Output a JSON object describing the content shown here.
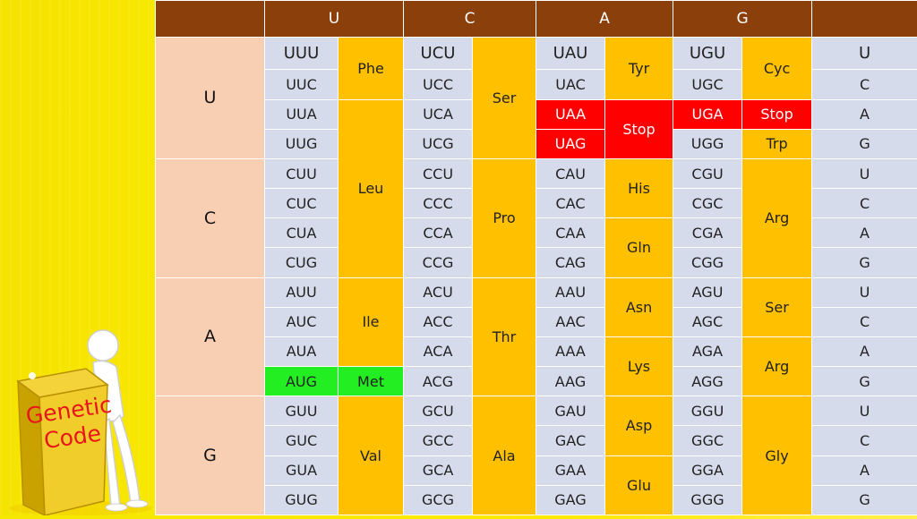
{
  "header": {
    "corner_left": "",
    "u": "U",
    "c": "C",
    "a": "A",
    "g": "G",
    "corner_right": ""
  },
  "first_bases": [
    "U",
    "C",
    "A",
    "G"
  ],
  "third_bases": [
    "U",
    "C",
    "A",
    "G"
  ],
  "codons": {
    "U": {
      "U": [
        "UUU",
        "UUC",
        "UUA",
        "UUG"
      ],
      "C": [
        "UCU",
        "UCC",
        "UCA",
        "UCG"
      ],
      "A": [
        "UAU",
        "UAC",
        "UAA",
        "UAG"
      ],
      "G": [
        "UGU",
        "UGC",
        "UGA",
        "UGG"
      ]
    },
    "C": {
      "U": [
        "CUU",
        "CUC",
        "CUA",
        "CUG"
      ],
      "C": [
        "CCU",
        "CCC",
        "CCA",
        "CCG"
      ],
      "A": [
        "CAU",
        "CAC",
        "CAA",
        "CAG"
      ],
      "G": [
        "CGU",
        "CGC",
        "CGA",
        "CGG"
      ]
    },
    "A": {
      "U": [
        "AUU",
        "AUC",
        "AUA",
        "AUG"
      ],
      "C": [
        "ACU",
        "ACC",
        "ACA",
        "ACG"
      ],
      "A": [
        "AAU",
        "AAC",
        "AAA",
        "AAG"
      ],
      "G": [
        "AGU",
        "AGC",
        "AGA",
        "AGG"
      ]
    },
    "G": {
      "U": [
        "GUU",
        "GUC",
        "GUA",
        "GUG"
      ],
      "C": [
        "GCU",
        "GCC",
        "GCA",
        "GCG"
      ],
      "A": [
        "GAU",
        "GAC",
        "GAA",
        "GAG"
      ],
      "G": [
        "GGU",
        "GGC",
        "GGA",
        "GGG"
      ]
    }
  },
  "amino_acids": {
    "phe": "Phe",
    "leu": "Leu",
    "ser": "Ser",
    "tyr": "Tyr",
    "stop": "Stop",
    "cyc": "Cyc",
    "stop_uga": "Stop",
    "trp": "Trp",
    "pro": "Pro",
    "his": "His",
    "gln": "Gln",
    "arg": "Arg",
    "ile": "Ile",
    "met": "Met",
    "thr": "Thr",
    "asn": "Asn",
    "lys": "Lys",
    "ser_ag": "Ser",
    "arg_ag": "Arg",
    "val": "Val",
    "ala": "Ala",
    "asp": "Asp",
    "glu": "Glu",
    "gly": "Gly"
  },
  "mascot": {
    "label_line1": "Genetic",
    "label_line2": "Code"
  },
  "colors": {
    "header": "#8b3f0a",
    "first_base": "#f9cfb3",
    "codon": "#d5dbea",
    "amino_acid": "#ffc000",
    "stop": "#ff0000",
    "start": "#22ee22",
    "background": "#f5e300"
  }
}
